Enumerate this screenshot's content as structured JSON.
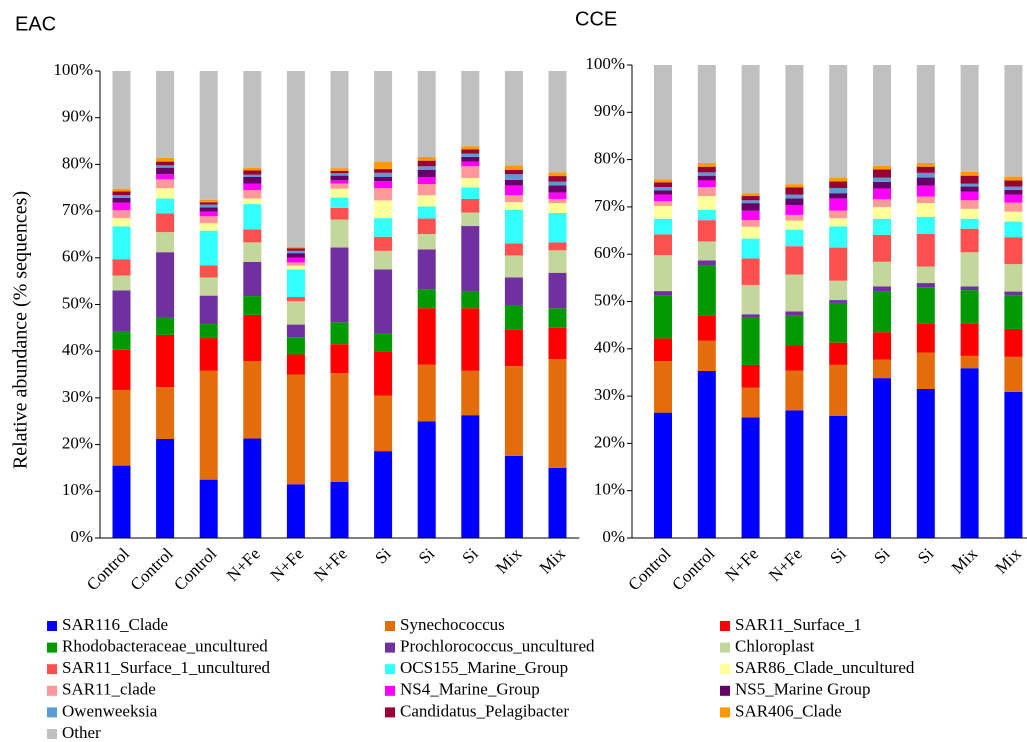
{
  "chart_data": [
    {
      "type": "bar",
      "stacked": true,
      "title": "EAC",
      "y_label": "Relative abundance (% sequences)",
      "categories": [
        "Control",
        "Control",
        "Control",
        "N+Fe",
        "N+Fe",
        "N+Fe",
        "Si",
        "Si",
        "Si",
        "Mix",
        "Mix"
      ],
      "ylim": [
        0,
        100
      ],
      "yticks": [
        {
          "value": 0,
          "label": "0%"
        },
        {
          "value": 10,
          "label": "10%"
        },
        {
          "value": 20,
          "label": "20%"
        },
        {
          "value": 30,
          "label": "30%"
        },
        {
          "value": 40,
          "label": "40%"
        },
        {
          "value": 50,
          "label": "50%"
        },
        {
          "value": 60,
          "label": "60%"
        },
        {
          "value": 70,
          "label": "70%"
        },
        {
          "value": 80,
          "label": "80%"
        },
        {
          "value": 90,
          "label": "90%"
        },
        {
          "value": 100,
          "label": "100%"
        }
      ],
      "series": [
        {
          "name": "SAR116_Clade",
          "color": "#0000ff",
          "values": [
            15.5,
            21.2,
            12.5,
            21.3,
            11.5,
            12,
            18.6,
            25,
            26.3,
            17.6,
            15
          ]
        },
        {
          "name": "Synechococcus",
          "color": "#e46c0a",
          "values": [
            16.2,
            11.1,
            23.3,
            16.6,
            23.5,
            23.3,
            11.9,
            12.1,
            9.5,
            19.2,
            23.3
          ]
        },
        {
          "name": "SAR11_Surface_1",
          "color": "#ff0000",
          "values": [
            8.6,
            11.2,
            7,
            9.9,
            4.3,
            6.2,
            9.5,
            12.1,
            13.4,
            7.9,
            6.7
          ]
        },
        {
          "name": "Rhodobacteraceae_uncultured",
          "color": "#009900",
          "values": [
            3.9,
            3.7,
            3,
            4,
            3.7,
            4.7,
            3.8,
            4.1,
            3.6,
            5,
            4.2
          ]
        },
        {
          "name": "Prochlorococcus_uncultured",
          "color": "#7030a0",
          "values": [
            8.8,
            14,
            6.1,
            7.3,
            2.7,
            16,
            13.7,
            8.5,
            14,
            6.1,
            7.6
          ]
        },
        {
          "name": "Chloroplast",
          "color": "#c3d69b",
          "values": [
            3.2,
            4.3,
            3.9,
            4.2,
            5,
            6,
            4,
            3.3,
            2.9,
            4.7,
            4.8
          ]
        },
        {
          "name": "SAR11_Surface_1_uncultured",
          "color": "#ff5050",
          "values": [
            3.5,
            4,
            2.6,
            2.8,
            0.9,
            2.5,
            3,
            3.3,
            2.9,
            2.6,
            1.7
          ]
        },
        {
          "name": "OCS155_Marine_Group",
          "color": "#33ffff",
          "values": [
            7,
            3.2,
            7.4,
            5.4,
            5.9,
            2.2,
            4,
            2.6,
            2.5,
            7.2,
            6.3
          ]
        },
        {
          "name": "SAR86_Clade_uncultured",
          "color": "#ffff99",
          "values": [
            1.8,
            2.2,
            1.6,
            1.2,
            0.8,
            1.9,
            3.8,
            2.4,
            2,
            1.6,
            2.1
          ]
        },
        {
          "name": "SAR11_clade",
          "color": "#ff9999",
          "values": [
            1.7,
            1.9,
            1.5,
            1.8,
            0.7,
            1.1,
            2.6,
            2.4,
            2.5,
            1.5,
            0.9
          ]
        },
        {
          "name": "NS4_Marine_Group",
          "color": "#ff00ff",
          "values": [
            1.6,
            1.1,
            1,
            1.4,
            1,
            0.7,
            1.5,
            1.5,
            1,
            2.1,
            1.4
          ]
        },
        {
          "name": "NS5_Marine Group",
          "color": "#660066",
          "values": [
            1,
            1.4,
            0.9,
            1.4,
            1,
            1,
            0.9,
            1.5,
            1,
            1.2,
            1.5
          ]
        },
        {
          "name": "Owenweeksia",
          "color": "#5b9bd5",
          "values": [
            0.6,
            0.5,
            0.6,
            0.5,
            0.5,
            0.5,
            0.9,
            0.8,
            0.7,
            1.2,
            0.8
          ]
        },
        {
          "name": "Candidatus_Pelagibacter",
          "color": "#990033",
          "values": [
            0.8,
            0.8,
            0.5,
            0.9,
            0.5,
            0.5,
            0.8,
            1.2,
            0.9,
            0.9,
            1.2
          ]
        },
        {
          "name": "SAR406_Clade",
          "color": "#ff9900",
          "values": [
            0.6,
            0.8,
            0.5,
            0.6,
            0.3,
            0.6,
            1.6,
            0.8,
            0.7,
            1,
            0.8
          ]
        },
        {
          "name": "Other",
          "color": "#c0c0c0",
          "values": [
            25.2,
            18.6,
            27.6,
            20.7,
            37.7,
            20.8,
            19.4,
            18.4,
            16.1,
            20.2,
            21.7
          ]
        }
      ]
    },
    {
      "type": "bar",
      "stacked": true,
      "title": "CCE",
      "categories": [
        "Control",
        "Control",
        "N+Fe",
        "N+Fe",
        "Si",
        "Si",
        "Si",
        "Mix",
        "Mix"
      ],
      "ylim": [
        0,
        100
      ],
      "yticks": [
        {
          "value": 0,
          "label": "0%"
        },
        {
          "value": 10,
          "label": "10%"
        },
        {
          "value": 20,
          "label": "20%"
        },
        {
          "value": 30,
          "label": "30%"
        },
        {
          "value": 40,
          "label": "40%"
        },
        {
          "value": 50,
          "label": "50%"
        },
        {
          "value": 60,
          "label": "60%"
        },
        {
          "value": 70,
          "label": "70%"
        },
        {
          "value": 80,
          "label": "80%"
        },
        {
          "value": 90,
          "label": "90%"
        },
        {
          "value": 100,
          "label": "100%"
        }
      ],
      "series": [
        {
          "color": "#0000ff",
          "values": [
            26.5,
            35.3,
            25.5,
            27,
            25.8,
            33.8,
            31.5,
            35.9,
            30.9
          ]
        },
        {
          "color": "#e46c0a",
          "values": [
            10.9,
            6.4,
            6.3,
            8.4,
            10.8,
            3.9,
            7.7,
            2.6,
            7.4
          ]
        },
        {
          "color": "#ff0000",
          "values": [
            4.8,
            5.4,
            4.8,
            5.3,
            4.7,
            5.8,
            6.2,
            6.9,
            5.9
          ]
        },
        {
          "color": "#009900",
          "values": [
            9.1,
            10.6,
            10,
            6.3,
            8.4,
            8.7,
            7.6,
            7,
            7.1
          ]
        },
        {
          "color": "#7030a0",
          "values": [
            0.9,
            1,
            0.7,
            0.9,
            0.6,
            1,
            0.9,
            0.8,
            0.8
          ]
        },
        {
          "color": "#c3d69b",
          "values": [
            7.6,
            4,
            6.2,
            7.8,
            4.1,
            5.2,
            3.5,
            7.2,
            5.8
          ]
        },
        {
          "color": "#ff5050",
          "values": [
            4.4,
            4.5,
            5.6,
            6,
            7,
            5.7,
            6.9,
            5,
            5.7
          ]
        },
        {
          "color": "#33ffff",
          "values": [
            3.3,
            2.2,
            4.2,
            3.5,
            4.5,
            3.4,
            3.6,
            2.1,
            3.3
          ]
        },
        {
          "color": "#ffff99",
          "values": [
            2.7,
            2.9,
            2.5,
            1.9,
            1.7,
            2.5,
            2.9,
            2.1,
            2.1
          ]
        },
        {
          "color": "#ff9999",
          "values": [
            1,
            1.9,
            1.4,
            1.2,
            1.6,
            1.6,
            1.4,
            1.8,
            1.9
          ]
        },
        {
          "color": "#ff00ff",
          "values": [
            1.4,
            1.4,
            2,
            2.1,
            2.6,
            2.3,
            2.3,
            1.8,
            1.7
          ]
        },
        {
          "color": "#660066",
          "values": [
            0.9,
            1,
            1.6,
            1.4,
            1.1,
            1.4,
            1.7,
            1.1,
            1
          ]
        },
        {
          "color": "#5b9bd5",
          "values": [
            0.7,
            0.7,
            0.6,
            0.8,
            1.1,
            0.9,
            1,
            0.6,
            0.7
          ]
        },
        {
          "color": "#990033",
          "values": [
            1,
            1.2,
            0.9,
            1.5,
            1.4,
            1.7,
            1.3,
            1.7,
            1.3
          ]
        },
        {
          "color": "#ff9900",
          "values": [
            0.6,
            0.8,
            0.6,
            0.7,
            0.8,
            0.8,
            0.8,
            0.8,
            0.8
          ]
        },
        {
          "color": "#c0c0c0",
          "values": [
            24.2,
            20.7,
            27.1,
            25.2,
            23.8,
            21.3,
            20.7,
            22.6,
            23.6
          ]
        }
      ]
    }
  ]
}
